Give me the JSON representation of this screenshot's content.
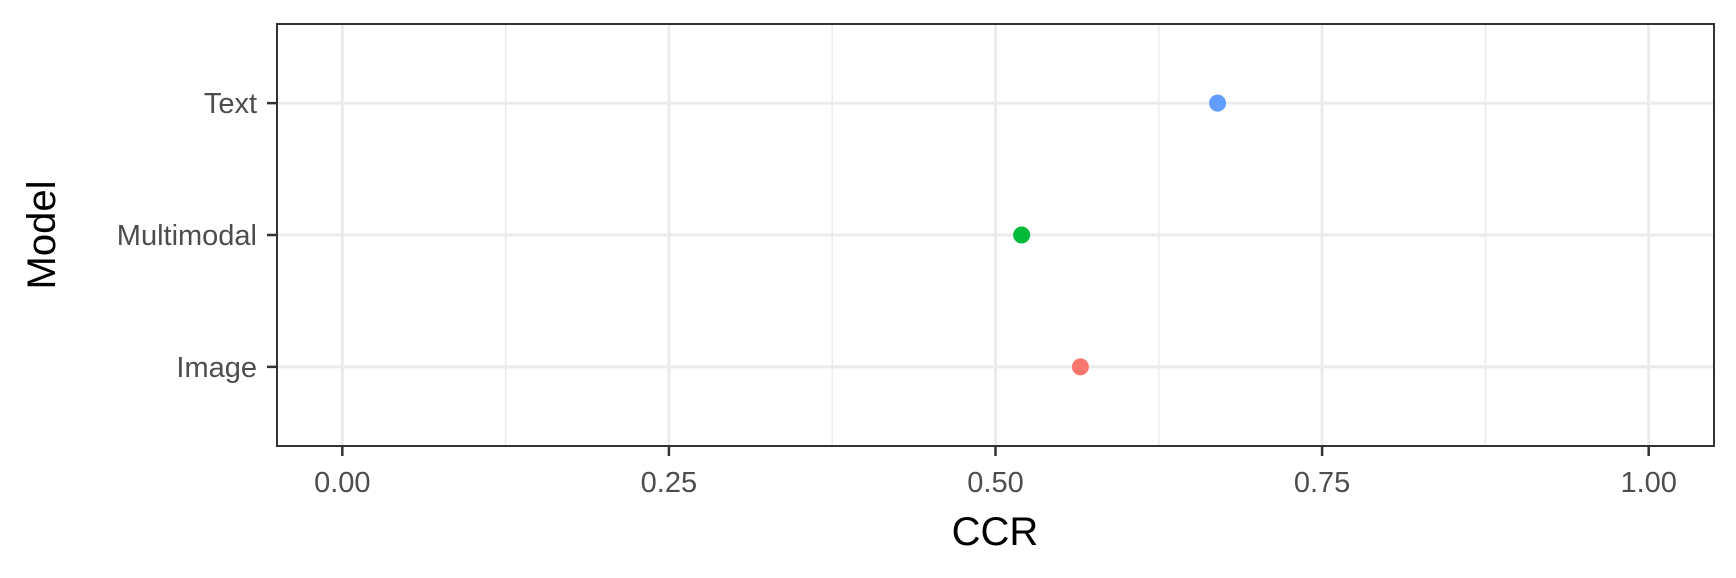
{
  "chart_data": {
    "type": "scatter",
    "xlabel": "CCR",
    "ylabel": "Model",
    "xlim": [
      -0.05,
      1.05
    ],
    "x_ticks": [
      "0.00",
      "0.25",
      "0.50",
      "0.75",
      "1.00"
    ],
    "categories": [
      "Image",
      "Multimodal",
      "Text"
    ],
    "grid": true,
    "legend": "none",
    "points": [
      {
        "category": "Image",
        "x": 0.565,
        "color": "#F8766D"
      },
      {
        "category": "Multimodal",
        "x": 0.52,
        "color": "#00BA38"
      },
      {
        "category": "Text",
        "x": 0.67,
        "color": "#619CFF"
      }
    ]
  }
}
